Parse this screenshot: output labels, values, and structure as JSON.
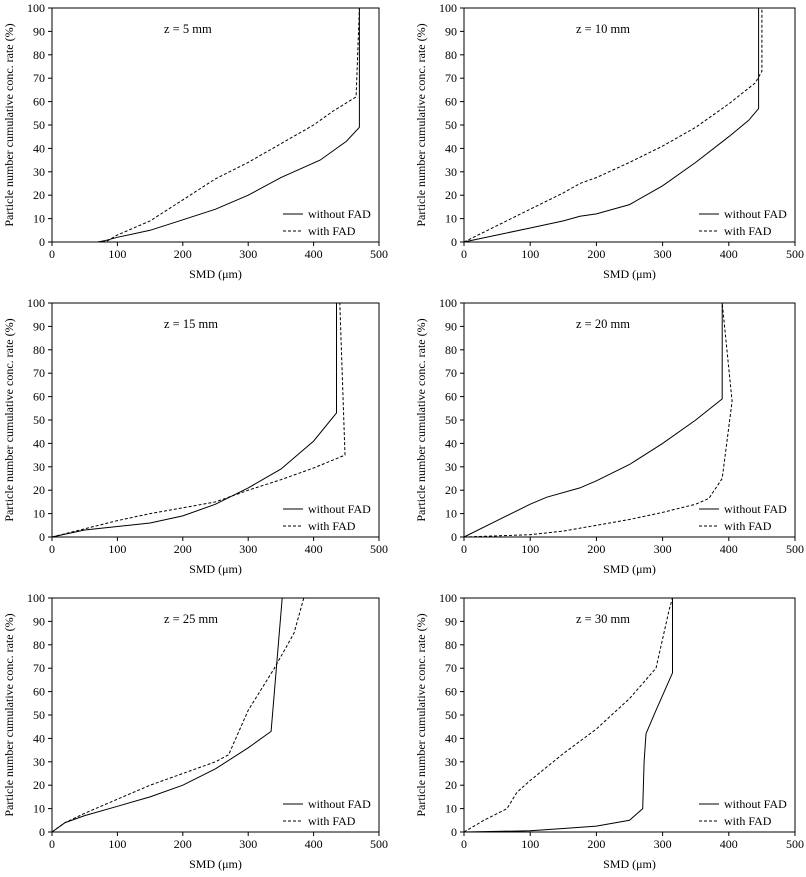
{
  "figure": {
    "colors": {
      "line": "#000000",
      "frame": "#000000",
      "background": "#ffffff"
    }
  },
  "chart_data": [
    {
      "type": "line",
      "annotation": "z = 5 mm",
      "xlabel": "SMD (μm)",
      "ylabel": "Particle number cumulative conc. rate (%)",
      "xlim": [
        0,
        500
      ],
      "ylim": [
        0,
        100
      ],
      "xticks": [
        "0",
        "100",
        "200",
        "300",
        "400",
        "500"
      ],
      "yticks": [
        "0",
        "10",
        "20",
        "30",
        "40",
        "50",
        "60",
        "70",
        "80",
        "90",
        "100"
      ],
      "grid": false,
      "legend_position": "bottom-right",
      "series": [
        {
          "name": "without FAD",
          "dash": "solid",
          "points": [
            [
              0,
              0
            ],
            [
              70,
              0
            ],
            [
              80,
              0.5
            ],
            [
              100,
              2
            ],
            [
              150,
              5
            ],
            [
              200,
              9.5
            ],
            [
              250,
              14
            ],
            [
              300,
              20
            ],
            [
              350,
              27.5
            ],
            [
              410,
              35
            ],
            [
              450,
              43
            ],
            [
              470,
              49
            ],
            [
              470,
              100
            ]
          ]
        },
        {
          "name": "with FAD",
          "dash": "dashed",
          "points": [
            [
              0,
              0
            ],
            [
              70,
              0
            ],
            [
              85,
              0.5
            ],
            [
              100,
              3
            ],
            [
              150,
              9
            ],
            [
              200,
              18
            ],
            [
              250,
              27
            ],
            [
              300,
              34
            ],
            [
              350,
              42
            ],
            [
              400,
              50
            ],
            [
              430,
              56
            ],
            [
              465,
              62
            ],
            [
              470,
              100
            ]
          ]
        }
      ]
    },
    {
      "type": "line",
      "annotation": "z = 10 mm",
      "xlabel": "SMD (μm)",
      "ylabel": "Particle number cumulative conc. rate (%)",
      "xlim": [
        0,
        500
      ],
      "ylim": [
        0,
        100
      ],
      "xticks": [
        "0",
        "100",
        "200",
        "300",
        "400",
        "500"
      ],
      "yticks": [
        "0",
        "10",
        "20",
        "30",
        "40",
        "50",
        "60",
        "70",
        "80",
        "90",
        "100"
      ],
      "grid": false,
      "legend_position": "bottom-right",
      "series": [
        {
          "name": "without FAD",
          "dash": "solid",
          "points": [
            [
              0,
              0
            ],
            [
              50,
              3
            ],
            [
              100,
              6
            ],
            [
              150,
              9
            ],
            [
              175,
              11
            ],
            [
              200,
              12
            ],
            [
              250,
              16
            ],
            [
              300,
              24
            ],
            [
              350,
              34
            ],
            [
              400,
              45
            ],
            [
              430,
              52
            ],
            [
              445,
              57
            ],
            [
              445,
              100
            ]
          ]
        },
        {
          "name": "with FAD",
          "dash": "dashed",
          "points": [
            [
              0,
              0
            ],
            [
              50,
              7
            ],
            [
              100,
              14
            ],
            [
              150,
              21
            ],
            [
              175,
              25
            ],
            [
              200,
              27.5
            ],
            [
              250,
              34
            ],
            [
              300,
              41
            ],
            [
              350,
              49
            ],
            [
              400,
              59
            ],
            [
              440,
              68
            ],
            [
              450,
              73
            ],
            [
              450,
              100
            ]
          ]
        }
      ]
    },
    {
      "type": "line",
      "annotation": "z = 15 mm",
      "xlabel": "SMD (μm)",
      "ylabel": "Particle number cumulative conc. rate (%)",
      "xlim": [
        0,
        500
      ],
      "ylim": [
        0,
        100
      ],
      "xticks": [
        "0",
        "100",
        "200",
        "300",
        "400",
        "500"
      ],
      "yticks": [
        "0",
        "10",
        "20",
        "30",
        "40",
        "50",
        "60",
        "70",
        "80",
        "90",
        "100"
      ],
      "grid": false,
      "legend_position": "bottom-right",
      "series": [
        {
          "name": "without FAD",
          "dash": "solid",
          "points": [
            [
              0,
              0
            ],
            [
              50,
              3
            ],
            [
              100,
              4.5
            ],
            [
              150,
              6
            ],
            [
              200,
              9
            ],
            [
              250,
              14
            ],
            [
              300,
              21
            ],
            [
              350,
              29
            ],
            [
              400,
              41
            ],
            [
              435,
              53
            ],
            [
              435,
              100
            ]
          ]
        },
        {
          "name": "with FAD",
          "dash": "dashed",
          "points": [
            [
              0,
              0
            ],
            [
              50,
              3.5
            ],
            [
              100,
              7
            ],
            [
              150,
              10
            ],
            [
              200,
              12.5
            ],
            [
              250,
              15
            ],
            [
              300,
              20
            ],
            [
              350,
              24.5
            ],
            [
              400,
              29.5
            ],
            [
              448,
              35
            ],
            [
              440,
              100
            ]
          ]
        }
      ]
    },
    {
      "type": "line",
      "annotation": "z = 20 mm",
      "xlabel": "SMD (μm)",
      "ylabel": "Particle number cumulative conc. rate (%)",
      "xlim": [
        0,
        500
      ],
      "ylim": [
        0,
        100
      ],
      "xticks": [
        "0",
        "100",
        "200",
        "300",
        "400",
        "500"
      ],
      "yticks": [
        "0",
        "10",
        "20",
        "30",
        "40",
        "50",
        "60",
        "70",
        "80",
        "90",
        "100"
      ],
      "grid": false,
      "legend_position": "bottom-right",
      "series": [
        {
          "name": "without FAD",
          "dash": "solid",
          "points": [
            [
              0,
              0
            ],
            [
              50,
              7
            ],
            [
              100,
              14
            ],
            [
              125,
              17
            ],
            [
              175,
              21
            ],
            [
              200,
              24
            ],
            [
              250,
              31
            ],
            [
              300,
              40
            ],
            [
              350,
              50
            ],
            [
              390,
              59
            ],
            [
              390,
              100
            ]
          ]
        },
        {
          "name": "with FAD",
          "dash": "dashed",
          "points": [
            [
              0,
              0
            ],
            [
              100,
              1
            ],
            [
              150,
              2.5
            ],
            [
              200,
              5
            ],
            [
              250,
              7.5
            ],
            [
              300,
              10.5
            ],
            [
              350,
              14
            ],
            [
              370,
              16.5
            ],
            [
              390,
              25
            ],
            [
              405,
              58
            ],
            [
              390,
              100
            ]
          ]
        }
      ]
    },
    {
      "type": "line",
      "annotation": "z = 25 mm",
      "xlabel": "SMD (μm)",
      "ylabel": "Particle number cumulative conc. rate (%)",
      "xlim": [
        0,
        500
      ],
      "ylim": [
        0,
        100
      ],
      "xticks": [
        "0",
        "100",
        "200",
        "300",
        "400",
        "500"
      ],
      "yticks": [
        "0",
        "10",
        "20",
        "30",
        "40",
        "50",
        "60",
        "70",
        "80",
        "90",
        "100"
      ],
      "grid": false,
      "legend_position": "bottom-right",
      "series": [
        {
          "name": "without FAD",
          "dash": "solid",
          "points": [
            [
              0,
              0
            ],
            [
              20,
              4
            ],
            [
              50,
              7
            ],
            [
              100,
              11
            ],
            [
              150,
              15
            ],
            [
              200,
              20
            ],
            [
              250,
              27
            ],
            [
              300,
              36
            ],
            [
              335,
              43
            ],
            [
              352,
              100
            ]
          ]
        },
        {
          "name": "with FAD",
          "dash": "dashed",
          "points": [
            [
              0,
              0
            ],
            [
              20,
              4
            ],
            [
              50,
              8
            ],
            [
              100,
              14
            ],
            [
              150,
              20
            ],
            [
              200,
              25
            ],
            [
              250,
              30
            ],
            [
              270,
              33
            ],
            [
              300,
              52
            ],
            [
              340,
              70
            ],
            [
              370,
              85
            ],
            [
              385,
              100
            ]
          ]
        }
      ]
    },
    {
      "type": "line",
      "annotation": "z = 30 mm",
      "xlabel": "SMD (μm)",
      "ylabel": "Particle number cumulative conc. rate (%)",
      "xlim": [
        0,
        500
      ],
      "ylim": [
        0,
        100
      ],
      "xticks": [
        "0",
        "100",
        "200",
        "300",
        "400",
        "500"
      ],
      "yticks": [
        "0",
        "10",
        "20",
        "30",
        "40",
        "50",
        "60",
        "70",
        "80",
        "90",
        "100"
      ],
      "grid": false,
      "legend_position": "bottom-right",
      "series": [
        {
          "name": "without FAD",
          "dash": "solid",
          "points": [
            [
              0,
              0
            ],
            [
              100,
              0.5
            ],
            [
              150,
              1.5
            ],
            [
              200,
              2.5
            ],
            [
              250,
              5
            ],
            [
              270,
              10
            ],
            [
              272,
              30
            ],
            [
              275,
              42
            ],
            [
              290,
              52
            ],
            [
              315,
              68
            ],
            [
              315,
              100
            ]
          ]
        },
        {
          "name": "with FAD",
          "dash": "dashed",
          "points": [
            [
              0,
              0
            ],
            [
              30,
              5
            ],
            [
              65,
              10
            ],
            [
              80,
              17
            ],
            [
              100,
              22
            ],
            [
              150,
              33.5
            ],
            [
              200,
              44
            ],
            [
              250,
              57
            ],
            [
              290,
              70
            ],
            [
              310,
              95
            ],
            [
              315,
              100
            ]
          ]
        }
      ]
    }
  ]
}
